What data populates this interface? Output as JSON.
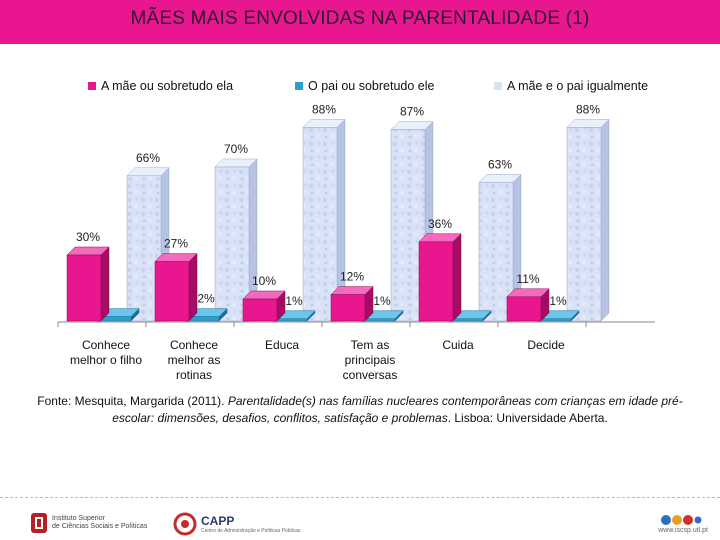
{
  "title": "MÃES MAIS ENVOLVIDAS NA PARENTALIDADE (1)",
  "colors": {
    "banner": "#e8168f",
    "series_mother": "#e8168f",
    "series_father": "#2a9fd0",
    "series_both": "#d7e0f4"
  },
  "chart_data": {
    "type": "bar",
    "title": "MÃES MAIS ENVOLVIDAS NA PARENTALIDADE (1)",
    "xlabel": "",
    "ylabel": "",
    "ylim": [
      0,
      100
    ],
    "grid": false,
    "legend_position": "top",
    "categories": [
      "Conhece melhor o filho",
      "Conhece melhor as rotinas",
      "Educa",
      "Tem as principais conversas",
      "Cuida",
      "Decide"
    ],
    "category_lines": [
      [
        "Conhece",
        "melhor o filho"
      ],
      [
        "Conhece",
        "melhor as",
        "rotinas"
      ],
      [
        "Educa"
      ],
      [
        "Tem as",
        "principais",
        "conversas"
      ],
      [
        "Cuida"
      ],
      [
        "Decide"
      ]
    ],
    "series": [
      {
        "name": "A mãe ou sobretudo ela",
        "values": [
          30,
          27,
          10,
          12,
          36,
          11
        ],
        "labels": [
          "30%",
          "27%",
          "10%",
          "12%",
          "36%",
          "11%"
        ]
      },
      {
        "name": "O pai ou sobretudo ele",
        "values": [
          2,
          2,
          1,
          1,
          1,
          1
        ],
        "labels": [
          "",
          "2%",
          "1%",
          "1%",
          "",
          "1%"
        ]
      },
      {
        "name": "A mãe e o pai igualmente",
        "values": [
          66,
          70,
          88,
          87,
          63,
          88
        ],
        "labels": [
          "66%",
          "70%",
          "88%",
          "87%",
          "63%",
          "88%"
        ]
      }
    ]
  },
  "source": {
    "prefix": "Fonte: Mesquita, Margarida  (2011). ",
    "title_italic": "Parentalidade(s) nas famílias nucleares contemporâneas com crianças em idade pré-escolar: dimensões, desafios, conflitos, satisfação e problemas",
    "suffix": ". Lisboa: Universidade Aberta."
  },
  "footer": {
    "logo1_line1": "Instituto Superior",
    "logo1_line2": "de Ciências Sociais e Políticas",
    "logo2_name": "CAPP",
    "logo2_sub": "Centro de Administração e Políticas Públicas",
    "url": "www.iscsp.utl.pt"
  }
}
